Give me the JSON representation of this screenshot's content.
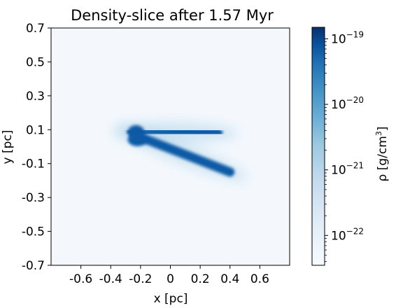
{
  "chart_data": {
    "type": "heatmap",
    "title": "Density-slice after 1.57 Myr",
    "xlabel": "x [pc]",
    "ylabel": "y [pc]",
    "xlim": [
      -0.8,
      0.8
    ],
    "ylim": [
      -0.7,
      0.7
    ],
    "x_ticks": [
      -0.6,
      -0.4,
      -0.2,
      0,
      0.2,
      0.4,
      0.6
    ],
    "x_tick_labels": [
      "-0.6",
      "-0.4",
      "-0.2",
      "0",
      "0.2",
      "0.4",
      "0.6"
    ],
    "y_ticks": [
      0.7,
      0.5,
      0.3,
      0.1,
      -0.1,
      -0.3,
      -0.5,
      -0.7
    ],
    "y_tick_labels": [
      "0.7",
      "0.5",
      "0.3",
      "0.1",
      "-0.1",
      "-0.3",
      "-0.5",
      "-0.7"
    ],
    "colorbar": {
      "label_prefix": "ρ [g/cm",
      "label_sup": "3",
      "label_suffix": "]",
      "scale": "log",
      "range": [
        3.5e-23,
        1.5e-19
      ],
      "ticks": [
        {
          "value": 1e-19,
          "base": "10",
          "exp": "−19"
        },
        {
          "value": 1e-20,
          "base": "10",
          "exp": "−20"
        },
        {
          "value": 1e-21,
          "base": "10",
          "exp": "−21"
        },
        {
          "value": 1e-22,
          "base": "10",
          "exp": "−22"
        }
      ],
      "colormap": [
        "#f7fbff",
        "#deebf7",
        "#c6dbef",
        "#9ecae1",
        "#6baed6",
        "#4292c6",
        "#2171b5",
        "#08519c",
        "#08306b"
      ]
    },
    "features": [
      {
        "kind": "filament",
        "x0": -0.26,
        "y0": 0.09,
        "x1": 0.32,
        "y1": 0.08
      },
      {
        "kind": "filament",
        "x0": -0.24,
        "y0": 0.07,
        "x1": 0.4,
        "y1": -0.15
      }
    ],
    "colors": {
      "background": "#f4f8fd",
      "dense": "#0c5aa6",
      "halo": "#6baed6"
    }
  }
}
